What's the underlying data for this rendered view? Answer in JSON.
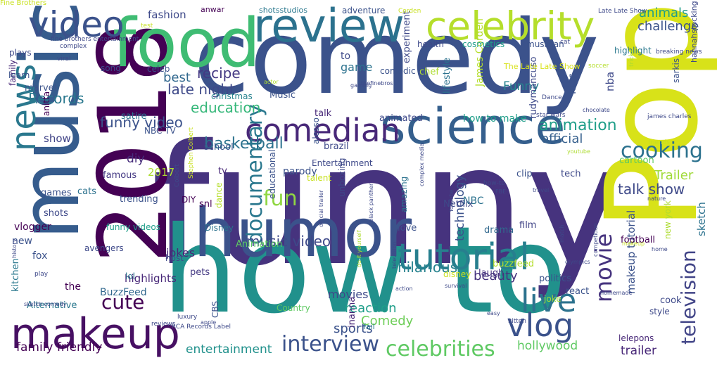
{
  "words": [
    {
      "text": "funny",
      "color": "#46337e"
    },
    {
      "text": "comedy",
      "color": "#3b528b"
    },
    {
      "text": "how to",
      "color": "#21918c"
    },
    {
      "text": "Pop",
      "color": "#d8e219"
    },
    {
      "text": "2018",
      "color": "#440154"
    },
    {
      "text": "music",
      "color": "#365c8d"
    },
    {
      "text": "food",
      "color": "#3fbc73"
    },
    {
      "text": "humor",
      "color": "#3b528b"
    },
    {
      "text": "science",
      "color": "#355f8d"
    },
    {
      "text": "review",
      "color": "#2c728e"
    },
    {
      "text": "makeup",
      "color": "#471063"
    },
    {
      "text": "celebrity",
      "color": "#b5de2b"
    },
    {
      "text": "tutorial",
      "color": "#277f8e"
    },
    {
      "text": "news",
      "color": "#2a788e"
    },
    {
      "text": "video",
      "color": "#3b528b"
    },
    {
      "text": "vlog",
      "color": "#3b528b"
    },
    {
      "text": "live",
      "color": "#2c728e"
    },
    {
      "text": "comedian",
      "color": "#482878"
    },
    {
      "text": "interview",
      "color": "#3b528b"
    },
    {
      "text": "celebrities",
      "color": "#5ec962"
    },
    {
      "text": "cooking",
      "color": "#2c728e"
    },
    {
      "text": "television",
      "color": "#414487"
    },
    {
      "text": "movie",
      "color": "#46337e"
    },
    {
      "text": "fun",
      "color": "#90d743"
    },
    {
      "text": "cute",
      "color": "#440154"
    },
    {
      "text": "documentary",
      "color": "#2a788e"
    },
    {
      "text": "music video",
      "color": "#3e4989"
    },
    {
      "text": "hilarious",
      "color": "#26828e"
    },
    {
      "text": "basketball",
      "color": "#2c728e"
    },
    {
      "text": "animation",
      "color": "#1f9e89"
    },
    {
      "text": "talk show",
      "color": "#3e4989"
    },
    {
      "text": "challenge",
      "color": "#3b528b"
    },
    {
      "text": "animals",
      "color": "#1f9e89"
    },
    {
      "text": "education",
      "color": "#35b779"
    },
    {
      "text": "late night",
      "color": "#3e4989"
    },
    {
      "text": "recipe",
      "color": "#443983"
    },
    {
      "text": "funny video",
      "color": "#3b528b"
    },
    {
      "text": "Records",
      "color": "#2a788e"
    },
    {
      "text": "family friendly",
      "color": "#440154"
    },
    {
      "text": "entertainment",
      "color": "#21918c"
    },
    {
      "text": "hollywood",
      "color": "#5ec962"
    },
    {
      "text": "trailer",
      "color": "#482878"
    },
    {
      "text": "sports",
      "color": "#3b528b"
    },
    {
      "text": "reaction",
      "color": "#1f9e89"
    },
    {
      "text": "Comedy",
      "color": "#6ece58"
    },
    {
      "text": "beauty",
      "color": "#46337e"
    },
    {
      "text": "official",
      "color": "#355f8d"
    },
    {
      "text": "Trailer",
      "color": "#a0da39"
    },
    {
      "text": "technology",
      "color": "#3b528b"
    },
    {
      "text": "highlights",
      "color": "#482878"
    },
    {
      "text": "jokes",
      "color": "#482878"
    },
    {
      "text": "movies",
      "color": "#3e4989"
    },
    {
      "text": "makeup tutorial",
      "color": "#3b528b"
    },
    {
      "text": "sketch",
      "color": "#2c728e"
    },
    {
      "text": "fashion",
      "color": "#3e4989"
    },
    {
      "text": "Funny",
      "color": "#26828e"
    },
    {
      "text": "best",
      "color": "#31688e"
    },
    {
      "text": "game",
      "color": "#2c728e"
    },
    {
      "text": "diy",
      "color": "#472d7b"
    },
    {
      "text": "2017",
      "color": "#addc30"
    },
    {
      "text": "show",
      "color": "#414487"
    },
    {
      "text": "kids",
      "color": "#3b528b"
    },
    {
      "text": "nba",
      "color": "#3e4989"
    },
    {
      "text": "buzzfeed",
      "color": "#b5de2b"
    },
    {
      "text": "BuzzFeed",
      "color": "#31688e"
    },
    {
      "text": "Alternative",
      "color": "#2a788e"
    },
    {
      "text": "cook",
      "color": "#3e4989"
    },
    {
      "text": "react",
      "color": "#3b528b"
    },
    {
      "text": "style",
      "color": "#3e4989"
    },
    {
      "text": "football",
      "color": "#440154"
    },
    {
      "text": "politics",
      "color": "#3b528b"
    },
    {
      "text": "laugh",
      "color": "#46337e"
    },
    {
      "text": "drama",
      "color": "#31688e"
    },
    {
      "text": "love",
      "color": "#3b528b"
    },
    {
      "text": "film",
      "color": "#414487"
    },
    {
      "text": "pets",
      "color": "#443983"
    },
    {
      "text": "lol",
      "color": "#2a788e"
    },
    {
      "text": "avengers",
      "color": "#3e4989"
    },
    {
      "text": "new",
      "color": "#3b528b"
    },
    {
      "text": "the",
      "color": "#440154"
    },
    {
      "text": "kitchen",
      "color": "#2a788e"
    },
    {
      "text": "vlogger",
      "color": "#440154"
    },
    {
      "text": "shots",
      "color": "#3e4989"
    },
    {
      "text": "games",
      "color": "#3b528b"
    },
    {
      "text": "cats",
      "color": "#2c728e"
    },
    {
      "text": "famous",
      "color": "#443983"
    },
    {
      "text": "trending",
      "color": "#3b528b"
    },
    {
      "text": "funny videos",
      "color": "#1f9e89"
    },
    {
      "text": "Disney",
      "color": "#2c728e"
    },
    {
      "text": "dance",
      "color": "#b5de2b"
    },
    {
      "text": "snl",
      "color": "#440154"
    },
    {
      "text": "tv",
      "color": "#482878"
    },
    {
      "text": "parody",
      "color": "#3b528b"
    },
    {
      "text": "brazil",
      "color": "#3e4989"
    },
    {
      "text": "school",
      "color": "#3b528b"
    },
    {
      "text": "NBC TV",
      "color": "#3b528b"
    },
    {
      "text": "satire",
      "color": "#2c728e"
    },
    {
      "text": "animated",
      "color": "#3e4989"
    },
    {
      "text": "talk",
      "color": "#482878"
    },
    {
      "text": "how to make",
      "color": "#1f9e89"
    },
    {
      "text": "christmas",
      "color": "#26828e"
    },
    {
      "text": "NBC",
      "color": "#2c728e"
    },
    {
      "text": "amazing",
      "color": "#2c728e"
    },
    {
      "text": "unboxing",
      "color": "#3e4989"
    },
    {
      "text": "clip",
      "color": "#3b528b"
    },
    {
      "text": "tech",
      "color": "#3e4989"
    },
    {
      "text": "cartoon",
      "color": "#5ec962"
    },
    {
      "text": "Music",
      "color": "#3b528b"
    },
    {
      "text": "chef",
      "color": "#addc30"
    },
    {
      "text": "comedic",
      "color": "#3b528b"
    },
    {
      "text": "experiment",
      "color": "#3e4989"
    },
    {
      "text": "lifestyle",
      "color": "#2c728e"
    },
    {
      "text": "James Corden",
      "color": "#b5de2b"
    },
    {
      "text": "to",
      "color": "#3e4989"
    },
    {
      "text": "song",
      "color": "#3e4989"
    },
    {
      "text": "celeb",
      "color": "#3b528b"
    },
    {
      "text": "DIY",
      "color": "#440154"
    },
    {
      "text": "marvel",
      "color": "#3b528b"
    },
    {
      "text": "family",
      "color": "#482878"
    },
    {
      "text": "learn",
      "color": "#3b528b"
    },
    {
      "text": "plays",
      "color": "#3e4989"
    },
    {
      "text": "anwar",
      "color": "#440154"
    },
    {
      "text": "shotsstudios",
      "color": "#2a788e"
    },
    {
      "text": "adventure",
      "color": "#3b528b"
    },
    {
      "text": "health",
      "color": "#3e4989"
    },
    {
      "text": "cosmetics",
      "color": "#1f9e89"
    },
    {
      "text": "musician",
      "color": "#3b528b"
    },
    {
      "text": "highlight",
      "color": "#2a788e"
    },
    {
      "text": "sarkis",
      "color": "#3b528b"
    },
    {
      "text": "hannahstocking",
      "color": "#3e4989"
    },
    {
      "text": "rudymancuso",
      "color": "#3e4989"
    },
    {
      "text": "alesso",
      "color": "#3b528b"
    },
    {
      "text": "Entertainment",
      "color": "#3e4989"
    },
    {
      "text": "educational",
      "color": "#3b528b"
    },
    {
      "text": "anitta",
      "color": "#440154"
    },
    {
      "text": "Animation",
      "color": "#5ec962"
    },
    {
      "text": "host",
      "color": "#3e4989"
    },
    {
      "text": "inanna",
      "color": "#482878"
    },
    {
      "text": "fail",
      "color": "#2a788e"
    },
    {
      "text": "Country",
      "color": "#5ec962"
    },
    {
      "text": "CBS",
      "color": "#3b528b"
    },
    {
      "text": "fox",
      "color": "#3b528b"
    },
    {
      "text": "lelepons",
      "color": "#482878"
    },
    {
      "text": "new york",
      "color": "#addc30"
    },
    {
      "text": "joke",
      "color": "#a0da39"
    },
    {
      "text": "disney",
      "color": "#c8e020"
    },
    {
      "text": "talent",
      "color": "#c8e020"
    },
    {
      "text": "Netflix",
      "color": "#3e4989"
    },
    {
      "text": "The Late Late Show",
      "color": "#d8e219"
    },
    {
      "text": "Corden",
      "color": "#c8e020"
    },
    {
      "text": "Late Late Show",
      "color": "#3e4989"
    },
    {
      "text": "fine brothers entertainment",
      "color": "#3e4989"
    },
    {
      "text": "test",
      "color": "#c8e020"
    },
    {
      "text": "complex",
      "color": "#3e4989"
    },
    {
      "text": "viral",
      "color": "#3e4989"
    },
    {
      "text": "cat",
      "color": "#3e4989"
    },
    {
      "text": "soccer",
      "color": "#b5de2b"
    },
    {
      "text": "breaking news",
      "color": "#3e4989"
    },
    {
      "text": "tricks",
      "color": "#addc30"
    },
    {
      "text": "Dance",
      "color": "#3e4989"
    },
    {
      "text": "chocolate",
      "color": "#3e4989"
    },
    {
      "text": "james charles",
      "color": "#3e4989"
    },
    {
      "text": "star wars",
      "color": "#3e4989"
    },
    {
      "text": "YouTube",
      "color": "#3e4989"
    },
    {
      "text": "actor",
      "color": "#addc30"
    },
    {
      "text": "gaming",
      "color": "#3e4989"
    },
    {
      "text": "thefinebros",
      "color": "#3e4989"
    },
    {
      "text": "youtube",
      "color": "#addc30"
    },
    {
      "text": "friends",
      "color": "#c8e020"
    },
    {
      "text": "how-to",
      "color": "#3e4989"
    },
    {
      "text": "travel",
      "color": "#3e4989"
    },
    {
      "text": "nature",
      "color": "#3e4989"
    },
    {
      "text": "FBE",
      "color": "#3e4989"
    },
    {
      "text": "official trailer",
      "color": "#3e4989"
    },
    {
      "text": "black panther",
      "color": "#3e4989"
    },
    {
      "text": "complex media",
      "color": "#3e4989"
    },
    {
      "text": "Stephen Colbert",
      "color": "#c8e020"
    },
    {
      "text": "Colbert",
      "color": "#3e4989"
    },
    {
      "text": "do it yourself",
      "color": "#addc30"
    },
    {
      "text": "action",
      "color": "#3e4989"
    },
    {
      "text": "television",
      "color": "#3e4989"
    },
    {
      "text": "olympics",
      "color": "#3e4989"
    },
    {
      "text": "match",
      "color": "#3e4989"
    },
    {
      "text": "makeup",
      "color": "#c8e020"
    },
    {
      "text": "competition",
      "color": "#3e4989"
    },
    {
      "text": "home",
      "color": "#3e4989"
    },
    {
      "text": "homemade",
      "color": "#3e4989"
    },
    {
      "text": "survival",
      "color": "#3e4989"
    },
    {
      "text": "easy",
      "color": "#3e4989"
    },
    {
      "text": "kitten",
      "color": "#3e4989"
    },
    {
      "text": "luxury",
      "color": "#3e4989"
    },
    {
      "text": "apple",
      "color": "#3e4989"
    },
    {
      "text": "reviews",
      "color": "#3e4989"
    },
    {
      "text": "RCA Records Label",
      "color": "#3e4989"
    },
    {
      "text": "play",
      "color": "#3e4989"
    },
    {
      "text": "history",
      "color": "#3e4989"
    },
    {
      "text": "sketch comedy",
      "color": "#3e4989"
    },
    {
      "text": "Fine Brothers",
      "color": "#c8e020"
    }
  ]
}
